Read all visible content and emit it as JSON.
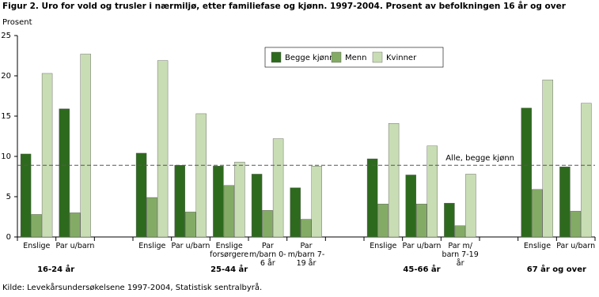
{
  "chart_data": {
    "type": "bar",
    "title": "Figur 2. Uro for vold og trusler i nærmiljø, etter familiefase og kjønn. 1997-2004. Prosent av befolkningen 16 år og over",
    "y_label": "Prosent",
    "categories": [
      "Enslige",
      "Par u/barn",
      null,
      "Enslige",
      "Par u/barn",
      "Enslige forsørgere",
      "Par m/barn 0-6 år",
      "Par m/barn 7-19 år",
      null,
      "Enslige",
      "Par u/barn",
      "Par m/ barn 7-19 år",
      null,
      "Enslige",
      "Par u/barn"
    ],
    "groups": [
      "16-24 år",
      "25-44 år",
      "45-66 år",
      "67 år og over"
    ],
    "series": [
      {
        "name": "Begge kjønn",
        "color": "#2e6a1e",
        "values": [
          10.3,
          15.9,
          null,
          10.4,
          8.9,
          8.8,
          7.8,
          6.1,
          null,
          9.7,
          7.7,
          4.2,
          null,
          16.0,
          8.7
        ]
      },
      {
        "name": "Menn",
        "color": "#84ab66",
        "values": [
          2.8,
          3.0,
          null,
          4.9,
          3.1,
          6.4,
          3.3,
          2.2,
          null,
          4.1,
          4.1,
          1.4,
          null,
          5.9,
          3.2
        ]
      },
      {
        "name": "Kvinner",
        "color": "#c9ddb5",
        "values": [
          20.3,
          22.7,
          null,
          21.9,
          15.3,
          9.3,
          12.2,
          8.8,
          null,
          14.1,
          11.3,
          7.8,
          null,
          19.5,
          16.6
        ]
      }
    ],
    "reference_line": {
      "value": 8.9,
      "label": "Alle, begge kjønn"
    },
    "ylim": [
      0,
      25
    ],
    "yticks": [
      0,
      5,
      10,
      15,
      20,
      25
    ],
    "grid": false,
    "legend": "top-center",
    "source": "Kilde: Levekårsundersøkelsene 1997-2004, Statistisk sentralbyrå."
  }
}
